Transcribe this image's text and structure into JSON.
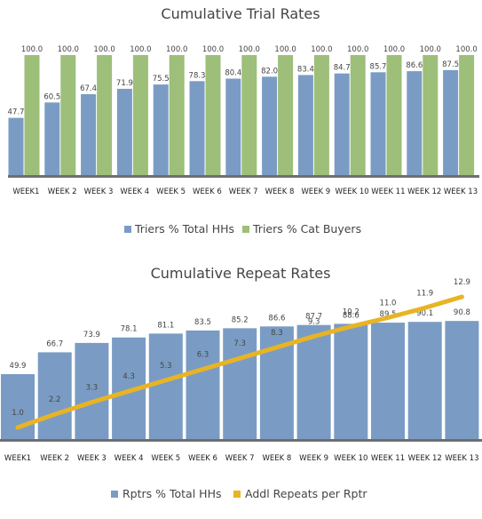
{
  "colors": {
    "triers_total": "#7a9cc4",
    "triers_cat": "#9dbf79",
    "rptrs_total": "#7a9cc4",
    "addl_repeats": "#e8b424",
    "axis": "#6f6f6f"
  },
  "chart_data": [
    {
      "type": "bar",
      "title": "Cumulative Trial Rates",
      "categories": [
        "WEEK1",
        "WEEK 2",
        "WEEK 3",
        "WEEK 4",
        "WEEK 5",
        "WEEK 6",
        "WEEK 7",
        "WEEK 8",
        "WEEK 9",
        "WEEK 10",
        "WEEK 11",
        "WEEK 12",
        "WEEK 13"
      ],
      "series": [
        {
          "name": "Triers % Total HHs",
          "values": [
            47.7,
            60.5,
            67.4,
            71.9,
            75.5,
            78.3,
            80.4,
            82.0,
            83.4,
            84.7,
            85.7,
            86.6,
            87.5
          ],
          "labels": [
            "47.7",
            "60.5",
            "67.4",
            "71.9",
            "75.5",
            "78.3",
            "80.4",
            "82.0",
            "83.4",
            "84.7",
            "85.7",
            "86.6",
            "87.5"
          ]
        },
        {
          "name": "Triers % Cat Buyers",
          "values": [
            100,
            100,
            100,
            100,
            100,
            100,
            100,
            100,
            100,
            100,
            100,
            100,
            100
          ],
          "labels": [
            "100.0",
            "100.0",
            "100.0",
            "100.0",
            "100.0",
            "100.0",
            "100.0",
            "100.0",
            "100.0",
            "100.0",
            "100.0",
            "100.0",
            "100.0"
          ]
        }
      ],
      "ylim": [
        0,
        100
      ],
      "grid": false,
      "legend": "bottom"
    },
    {
      "type": "bar",
      "title": "Cumulative Repeat Rates",
      "categories": [
        "WEEK1",
        "WEEK 2",
        "WEEK 3",
        "WEEK 4",
        "WEEK 5",
        "WEEK 6",
        "WEEK 7",
        "WEEK 8",
        "WEEK 9",
        "WEEK 10",
        "WEEK 11",
        "WEEK 12",
        "WEEK 13"
      ],
      "series": [
        {
          "name": "Rptrs % Total HHs",
          "type": "bar",
          "values": [
            49.9,
            66.7,
            73.9,
            78.1,
            81.1,
            83.5,
            85.2,
            86.6,
            87.7,
            88.6,
            89.5,
            90.1,
            90.8
          ],
          "labels": [
            "49.9",
            "66.7",
            "73.9",
            "78.1",
            "81.1",
            "83.5",
            "85.2",
            "86.6",
            "87.7",
            "88.6",
            "89.5",
            "90.1",
            "90.8"
          ]
        },
        {
          "name": "Addl Repeats per Rptr",
          "type": "line",
          "values": [
            1.0,
            2.2,
            3.3,
            4.3,
            5.3,
            6.3,
            7.3,
            8.3,
            9.3,
            10.2,
            11.0,
            11.9,
            12.9
          ],
          "labels": [
            "1.0",
            "2.2",
            "3.3",
            "4.3",
            "5.3",
            "6.3",
            "7.3",
            "8.3",
            "9.3",
            "10.2",
            "11.0",
            "11.9",
            "12.9"
          ]
        }
      ],
      "ylim": [
        0,
        100
      ],
      "grid": false,
      "legend": "bottom"
    }
  ]
}
